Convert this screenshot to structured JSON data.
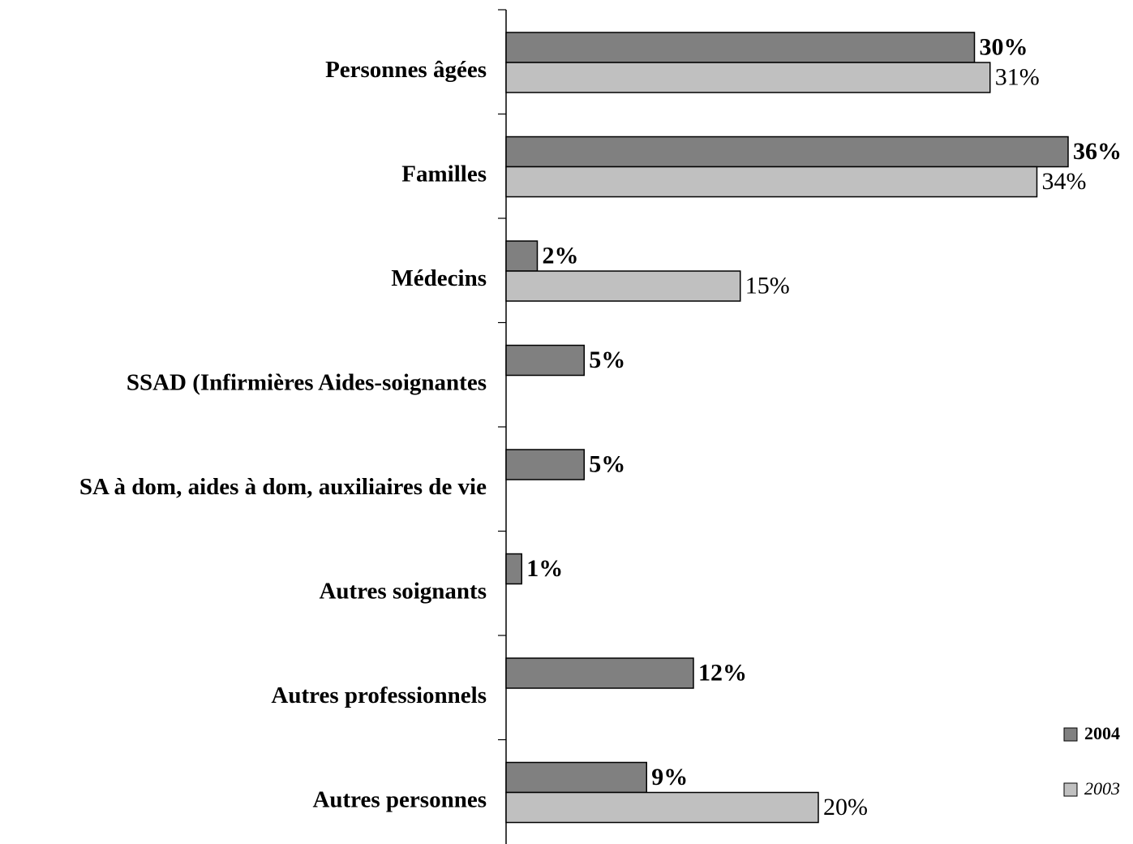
{
  "chart_data": {
    "type": "bar",
    "orientation": "horizontal",
    "categories": [
      "Personnes âgées",
      "Familles",
      "Médecins",
      "SSAD (Infirmières Aides-soignantes",
      "SA à dom, aides à dom, auxiliaires de vie",
      "Autres soignants",
      "Autres professionnels",
      "Autres personnes"
    ],
    "series": [
      {
        "name": "2004",
        "color": "#808080",
        "values": [
          30,
          36,
          2,
          5,
          5,
          1,
          12,
          9
        ],
        "value_labels": [
          "30%",
          "36%",
          "2%",
          "5%",
          "5%",
          "1%",
          "12%",
          "9%"
        ]
      },
      {
        "name": "2003",
        "color": "#c0c0c0",
        "values": [
          31,
          34,
          15,
          null,
          null,
          null,
          null,
          20
        ],
        "value_labels": [
          "31%",
          "34%",
          "15%",
          null,
          null,
          null,
          null,
          "20%"
        ]
      }
    ],
    "xlim": [
      0,
      40
    ],
    "legend": "lower right"
  }
}
